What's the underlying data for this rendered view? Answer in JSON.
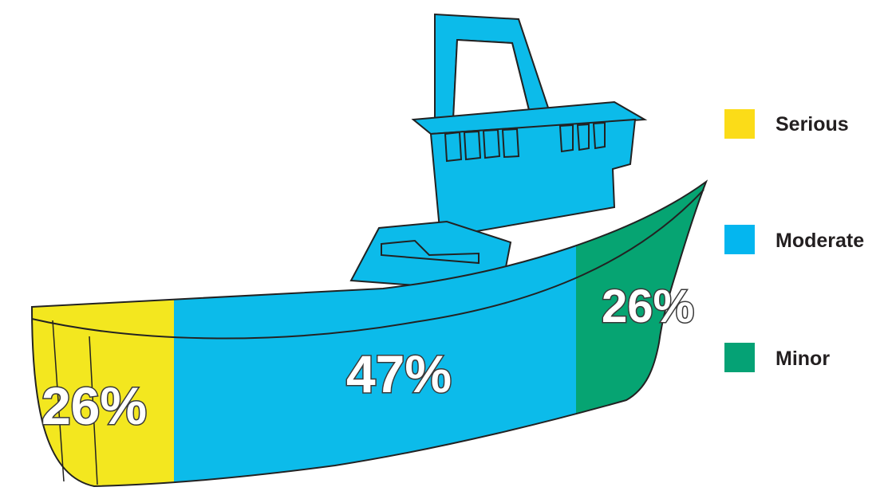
{
  "chart_data": {
    "type": "pie",
    "categories": [
      "Serious",
      "Moderate",
      "Minor"
    ],
    "values": [
      26,
      47,
      26
    ],
    "value_labels": [
      "26%",
      "47%",
      "26%"
    ],
    "colors": [
      "#f3e71f",
      "#0cbbea",
      "#06a472"
    ],
    "legend": {
      "placement": "right",
      "items": [
        {
          "label": "Serious",
          "color": "#fbdc18"
        },
        {
          "label": "Moderate",
          "color": "#04b6ef"
        },
        {
          "label": "Minor",
          "color": "#05a275"
        }
      ]
    }
  }
}
